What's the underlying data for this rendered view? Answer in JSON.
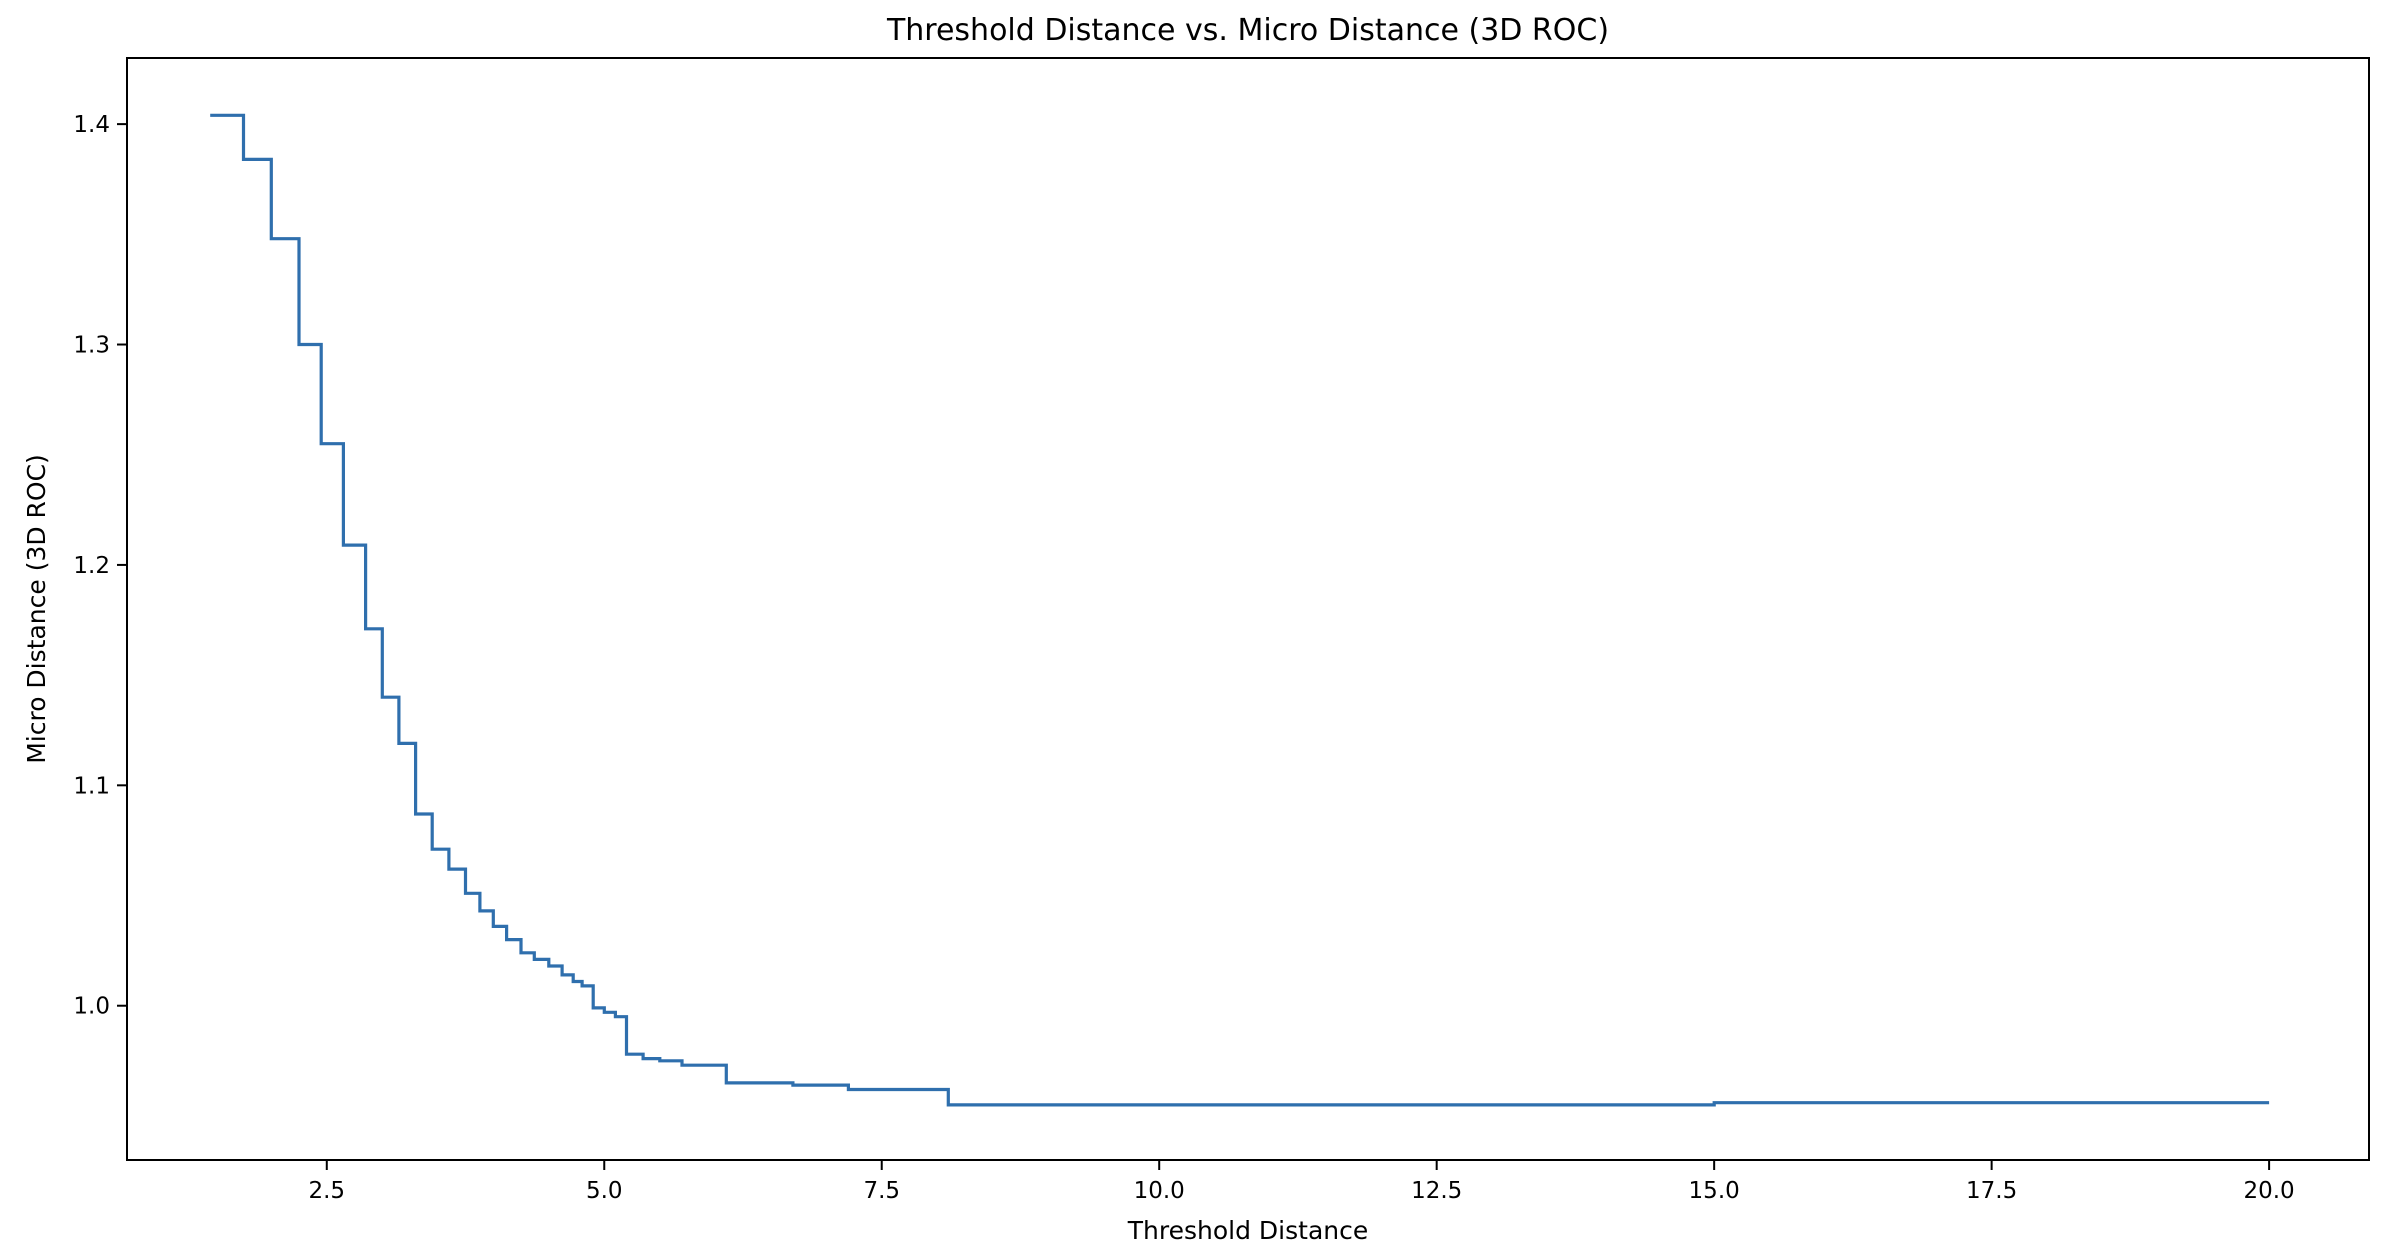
{
  "chart_data": {
    "type": "line",
    "title": "Threshold Distance vs. Micro Distance (3D ROC)",
    "xlabel": "Threshold Distance",
    "ylabel": "Micro Distance (3D ROC)",
    "xlim": [
      0.7,
      20.9
    ],
    "ylim": [
      0.93,
      1.43
    ],
    "xticks": [
      {
        "value": 2.5,
        "label": "2.5"
      },
      {
        "value": 5.0,
        "label": "5.0"
      },
      {
        "value": 7.5,
        "label": "7.5"
      },
      {
        "value": 10.0,
        "label": "10.0"
      },
      {
        "value": 12.5,
        "label": "12.5"
      },
      {
        "value": 15.0,
        "label": "15.0"
      },
      {
        "value": 17.5,
        "label": "17.5"
      },
      {
        "value": 20.0,
        "label": "20.0"
      }
    ],
    "yticks": [
      {
        "value": 1.0,
        "label": "1.0"
      },
      {
        "value": 1.1,
        "label": "1.1"
      },
      {
        "value": 1.2,
        "label": "1.2"
      },
      {
        "value": 1.3,
        "label": "1.3"
      },
      {
        "value": 1.4,
        "label": "1.4"
      }
    ],
    "grid": false,
    "legend": "none",
    "colors": {
      "line": "#2f6fad"
    },
    "series": [
      {
        "step": "post",
        "x": [
          1.45,
          1.75,
          2.0,
          2.25,
          2.45,
          2.65,
          2.85,
          3.0,
          3.15,
          3.3,
          3.45,
          3.6,
          3.75,
          3.88,
          4.0,
          4.12,
          4.25,
          4.37,
          4.5,
          4.62,
          4.72,
          4.8,
          4.9,
          5.0,
          5.1,
          5.2,
          5.35,
          5.5,
          5.7,
          6.1,
          6.7,
          7.2,
          8.1,
          9.1,
          10.5,
          12.3,
          15.0,
          20.0
        ],
        "y": [
          1.404,
          1.384,
          1.348,
          1.3,
          1.255,
          1.209,
          1.171,
          1.14,
          1.119,
          1.087,
          1.071,
          1.062,
          1.051,
          1.043,
          1.036,
          1.03,
          1.024,
          1.021,
          1.018,
          1.014,
          1.011,
          1.009,
          0.999,
          0.997,
          0.995,
          0.978,
          0.976,
          0.975,
          0.973,
          0.965,
          0.964,
          0.962,
          0.955,
          0.955,
          0.955,
          0.955,
          0.956,
          0.956
        ]
      }
    ]
  }
}
